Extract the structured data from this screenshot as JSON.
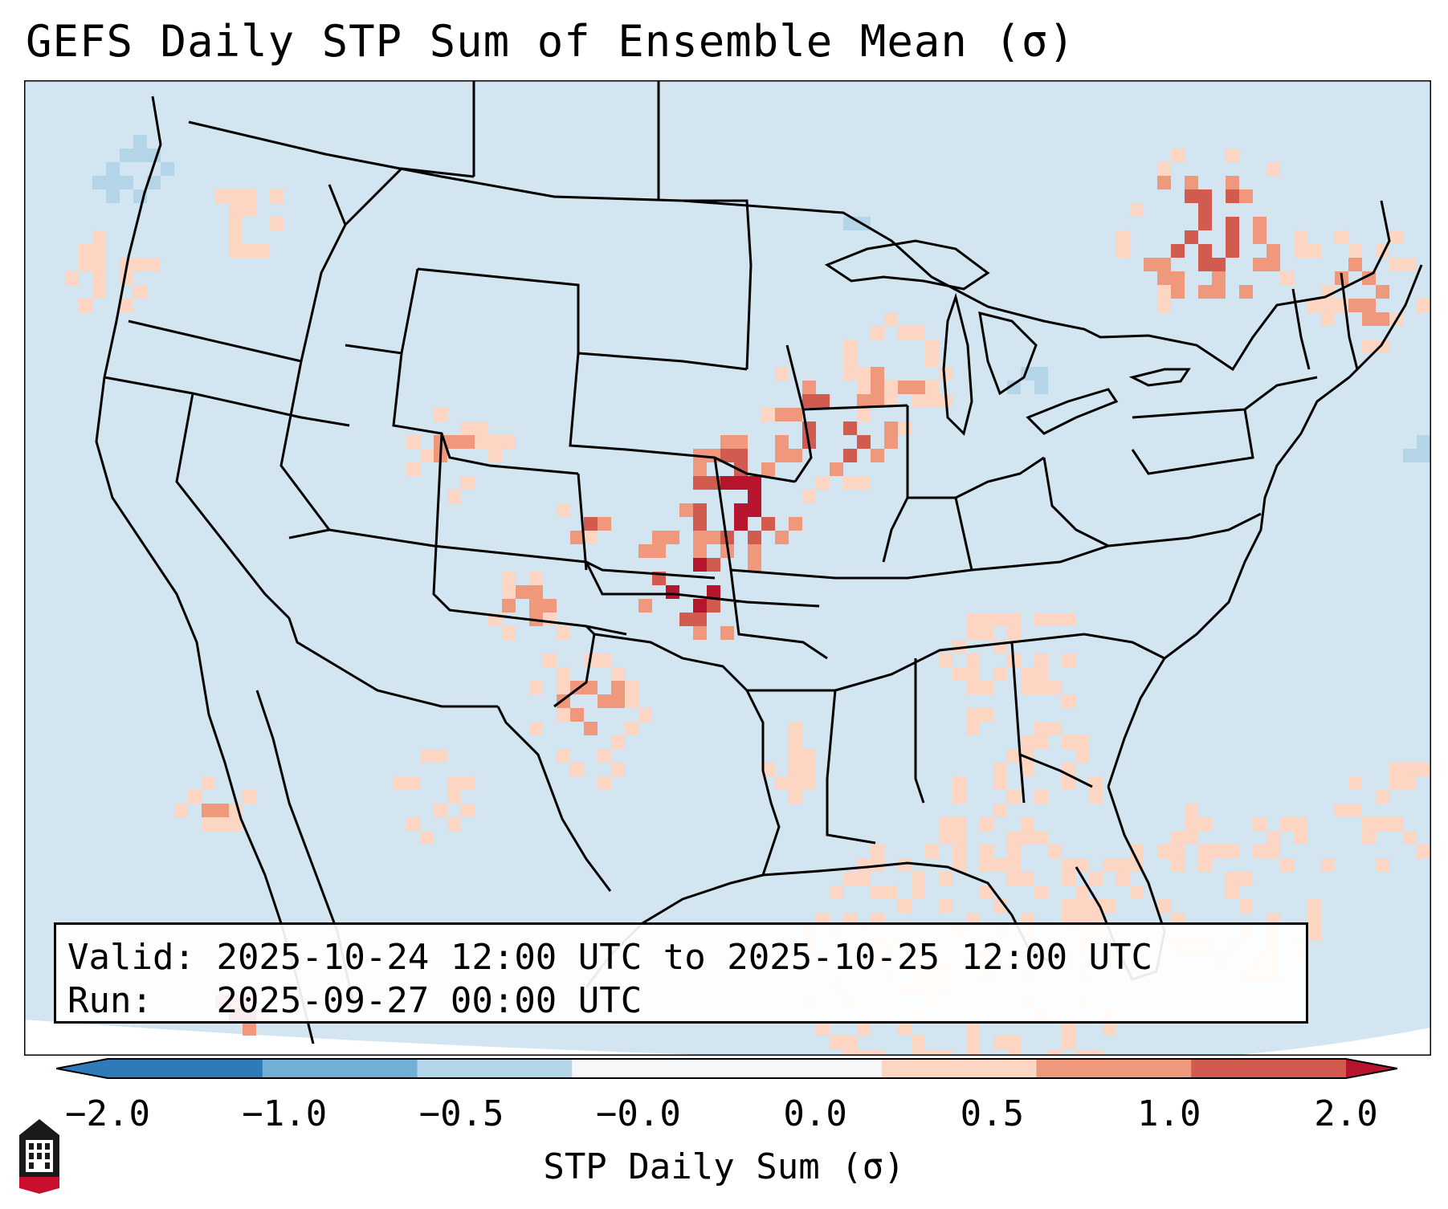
{
  "title": "GEFS Daily STP Sum of Ensemble Mean (σ)",
  "info": {
    "valid_label": "Valid:",
    "valid_value": "2025-10-24 12:00 UTC to 2025-10-25 12:00 UTC",
    "run_label": "Run:",
    "run_value": "2025-09-27 00:00 UTC"
  },
  "colorbar": {
    "label": "STP Daily Sum (σ)",
    "ticks": [
      "−2.0",
      "−1.0",
      "−0.5",
      "−0.0",
      "0.0",
      "0.5",
      "1.0",
      "2.0"
    ],
    "colors": [
      "#2f7ab9",
      "#72afd4",
      "#b3d5e7",
      "#f5f7f9",
      "#fcd6c3",
      "#f0987b",
      "#d05b4e",
      "#b6152d"
    ],
    "extend": "both"
  },
  "map": {
    "background_color": "#d2e5f0",
    "region": "Contiguous United States"
  },
  "logo": {
    "name": "NIU"
  }
}
